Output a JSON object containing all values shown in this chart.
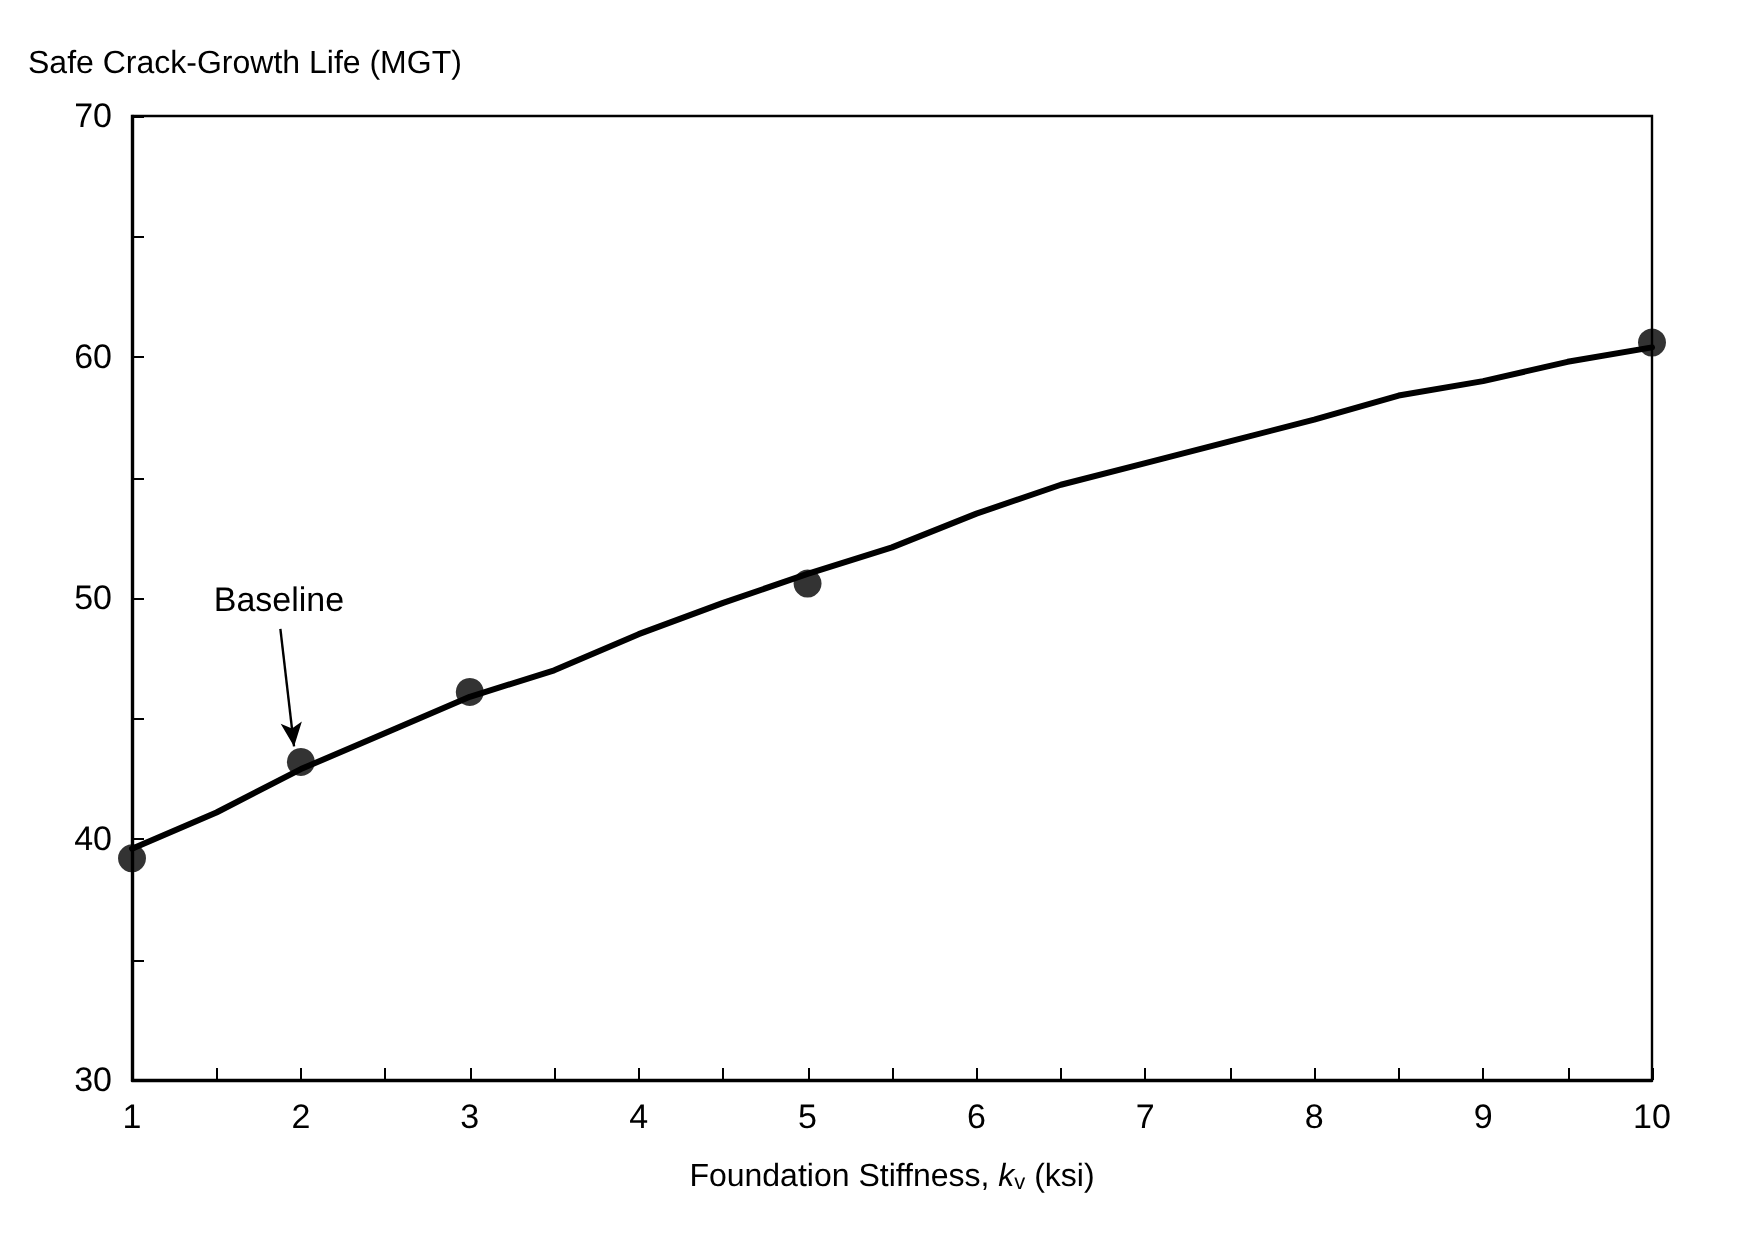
{
  "chart_data": {
    "type": "line",
    "xlabel": "Foundation Stiffness, k$_{v}$ (ksi)",
    "ylabel": "Safe Crack-Growth Life (MGT)",
    "xlim": [
      1,
      10
    ],
    "xticks": [
      1,
      {
        "value": 1.5,
        "label": null
      },
      2,
      {
        "value": 2.5,
        "label": null
      },
      3,
      {
        "value": 3.5,
        "label": null
      },
      4,
      {
        "value": 4.5,
        "label": null
      },
      5,
      {
        "value": 5.5,
        "label": null
      },
      6,
      {
        "value": 6.5,
        "label": null
      },
      7,
      {
        "value": 7.5,
        "label": null
      },
      8,
      {
        "value": 8.5,
        "label": null
      },
      9,
      {
        "value": 9.5,
        "label": null
      },
      10
    ],
    "ylim": [
      30,
      70
    ],
    "yticks": [
      30,
      {
        "value": 35,
        "label": null
      },
      40,
      {
        "value": 45,
        "label": null
      },
      50,
      {
        "value": 55,
        "label": null
      },
      60,
      {
        "value": 65,
        "label": null
      },
      70
    ],
    "grid": false,
    "series": [
      {
        "type": "line",
        "color": "#000000",
        "marker": "none",
        "line_style": "solid",
        "x": [
          1,
          1.5,
          2,
          2.5,
          3,
          3.5,
          4,
          4.5,
          5,
          5.5,
          6,
          6.5,
          7,
          7.5,
          8,
          8.5,
          9,
          9.5,
          10
        ],
        "values": [
          39.6,
          41.1,
          42.9,
          44.4,
          45.9,
          47.0,
          48.5,
          49.8,
          51.0,
          52.1,
          53.5,
          54.7,
          55.6,
          56.5,
          57.4,
          58.4,
          59.0,
          59.8,
          60.4
        ]
      },
      {
        "type": "scatter",
        "color": "#000000",
        "marker": "circle",
        "x": [
          1,
          2,
          3,
          5,
          10
        ],
        "values": [
          39.2,
          43.2,
          46.1,
          50.6,
          60.6
        ]
      }
    ],
    "annotations": [
      {
        "text": "Baseline",
        "x": 2,
        "y": 43.2
      }
    ]
  }
}
